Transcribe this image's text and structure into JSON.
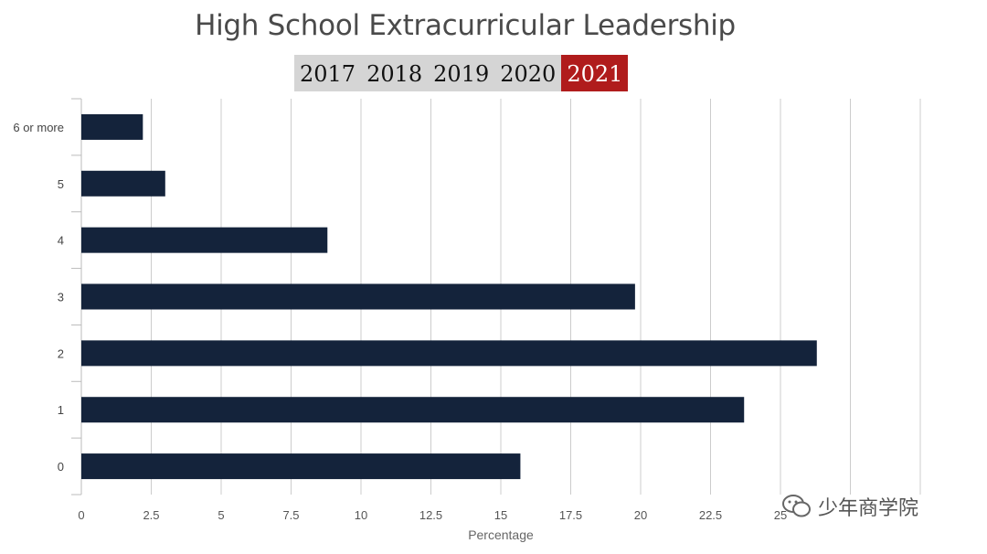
{
  "title": "High School Extracurricular Leadership",
  "year_tabs": [
    {
      "label": "2017"
    },
    {
      "label": "2018"
    },
    {
      "label": "2019"
    },
    {
      "label": "2020"
    },
    {
      "label": "2021"
    }
  ],
  "active_year": "2021",
  "watermark": {
    "text": "少年商学院",
    "icon": "wechat-icon"
  },
  "colors": {
    "bar": "#14233b",
    "active_tab": "#b01c1c",
    "tab_bg": "#d5d5d5",
    "grid": "#cccccc"
  },
  "chart_data": {
    "type": "bar",
    "orientation": "horizontal",
    "categories": [
      "0",
      "1",
      "2",
      "3",
      "4",
      "5",
      "6 or more"
    ],
    "values": [
      15.7,
      23.7,
      26.3,
      19.8,
      8.8,
      3.0,
      2.2
    ],
    "xlabel": "Percentage",
    "ylabel": "",
    "xlim": [
      0,
      30
    ],
    "x_ticks": [
      "0",
      "2.5",
      "5",
      "7.5",
      "10",
      "12.5",
      "15",
      "17.5",
      "20",
      "22.5",
      "25"
    ],
    "grid": true
  }
}
